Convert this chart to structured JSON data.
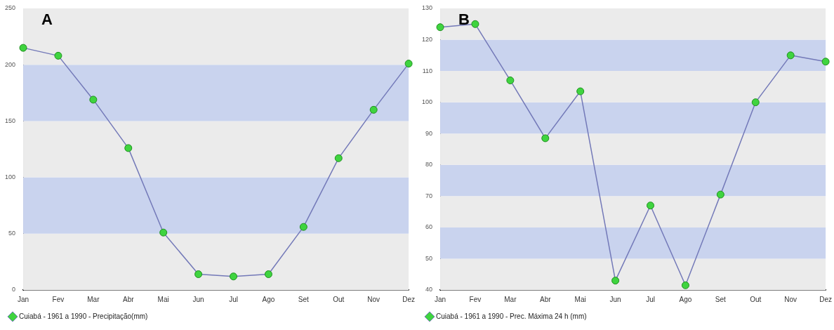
{
  "chart_data": [
    {
      "type": "line",
      "categories": [
        "Jan",
        "Fev",
        "Mar",
        "Abr",
        "Mai",
        "Jun",
        "Jul",
        "Ago",
        "Set",
        "Out",
        "Nov",
        "Dez"
      ],
      "series": [
        {
          "name": "Cuiabá - 1961 a 1990 - Precipitação(mm)",
          "color": "#7379b8",
          "values": [
            215,
            208,
            169,
            126,
            51,
            14,
            12,
            14,
            56,
            117,
            160,
            201
          ]
        }
      ],
      "ylim": [
        0,
        250
      ],
      "yticks": [
        0,
        50,
        100,
        150,
        200,
        250
      ],
      "legend": "bottom left",
      "marker": "circle",
      "annotations": [
        "A"
      ]
    },
    {
      "type": "line",
      "categories": [
        "Jan",
        "Fev",
        "Mar",
        "Abr",
        "Mai",
        "Jun",
        "Jul",
        "Ago",
        "Set",
        "Out",
        "Nov",
        "Dez"
      ],
      "series": [
        {
          "name": "Cuiabá - 1961 a 1990 - Prec. Máxima 24 h (mm)",
          "color": "#7379b8",
          "values": [
            124,
            125,
            107,
            88.5,
            103.5,
            43,
            67,
            41.5,
            70.5,
            100,
            115,
            113
          ]
        }
      ],
      "ylim": [
        40,
        130
      ],
      "yticks": [
        40,
        50,
        60,
        70,
        80,
        90,
        100,
        110,
        120,
        130
      ],
      "legend": "bottom left",
      "marker": "circle",
      "annotations": [
        "B"
      ]
    }
  ]
}
